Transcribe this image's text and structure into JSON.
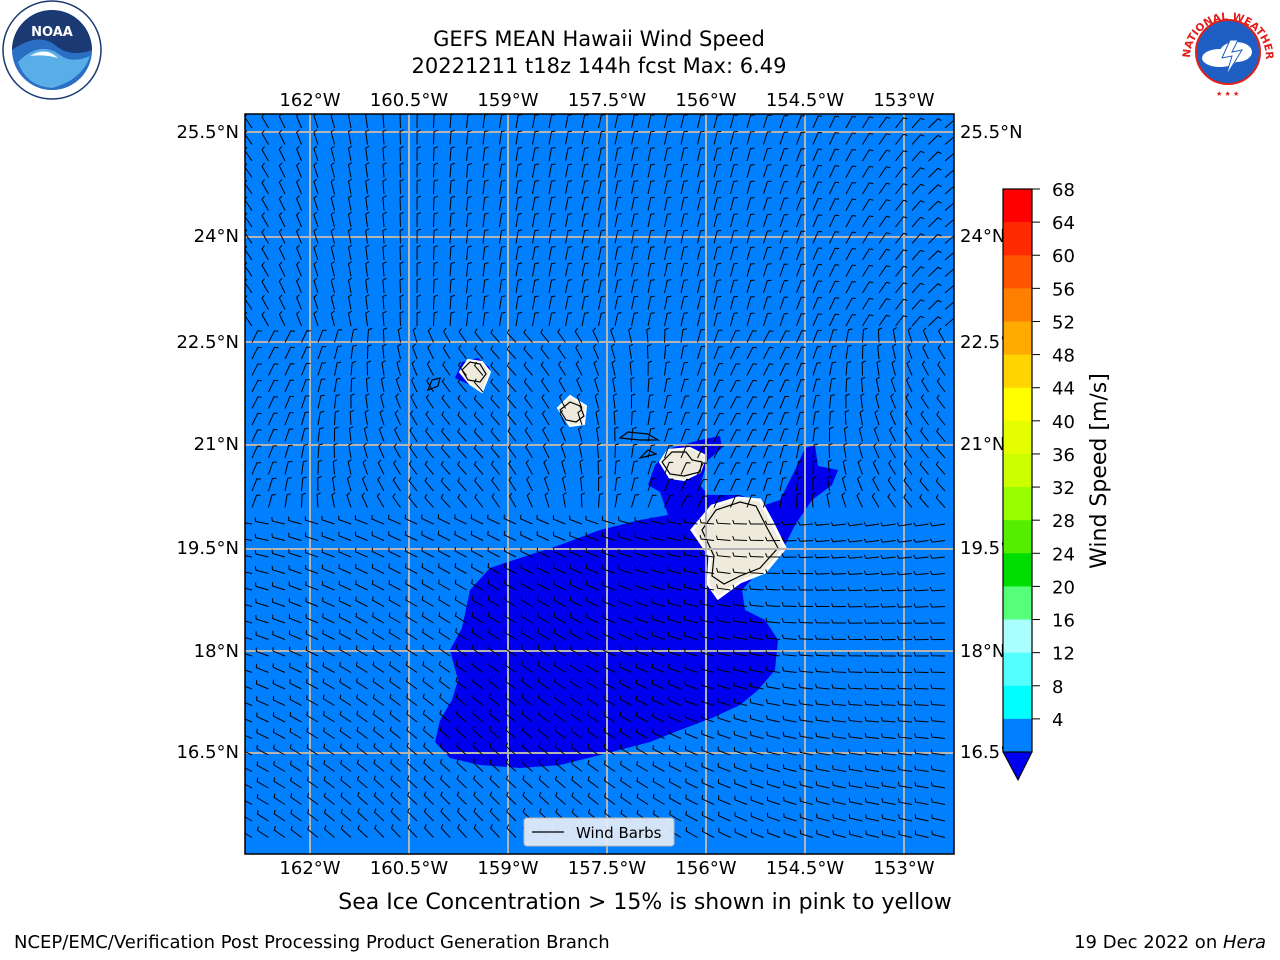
{
  "header": {
    "title_line1": "GEFS MEAN Hawaii Wind Speed",
    "title_line2": "20221211 t18z 144h fcst   Max: 6.49"
  },
  "logos": {
    "left": "NOAA",
    "right_text": "NATIONAL WEATHER SERVICE"
  },
  "map": {
    "lon_labels": [
      "162°W",
      "160.5°W",
      "159°W",
      "157.5°W",
      "156°W",
      "154.5°W",
      "153°W"
    ],
    "lat_labels": [
      "25.5°N",
      "24°N",
      "22.5°N",
      "21°N",
      "19.5°N",
      "18°N",
      "16.5°N"
    ],
    "legend_label": "Wind Barbs"
  },
  "colorbar": {
    "label": "Wind Speed [m/s]",
    "ticks": [
      "68",
      "64",
      "60",
      "56",
      "52",
      "48",
      "44",
      "40",
      "36",
      "32",
      "28",
      "24",
      "20",
      "16",
      "12",
      "8",
      "4"
    ],
    "colors": [
      "#ff0000",
      "#ff2a00",
      "#ff5500",
      "#ff7f00",
      "#ffaa00",
      "#ffd400",
      "#ffff00",
      "#e6ff00",
      "#ccff00",
      "#99ff00",
      "#55ee00",
      "#00dd00",
      "#55ff77",
      "#aaffff",
      "#55ffff",
      "#00ffff",
      "#007fff"
    ],
    "under_color": "#0000ee"
  },
  "note": "Sea Ice Concentration > 15% is shown in pink to yellow",
  "footer": {
    "left": "NCEP/EMC/Verification Post Processing Product Generation Branch",
    "date": "19 Dec 2022 on ",
    "machine": "Hera"
  }
}
